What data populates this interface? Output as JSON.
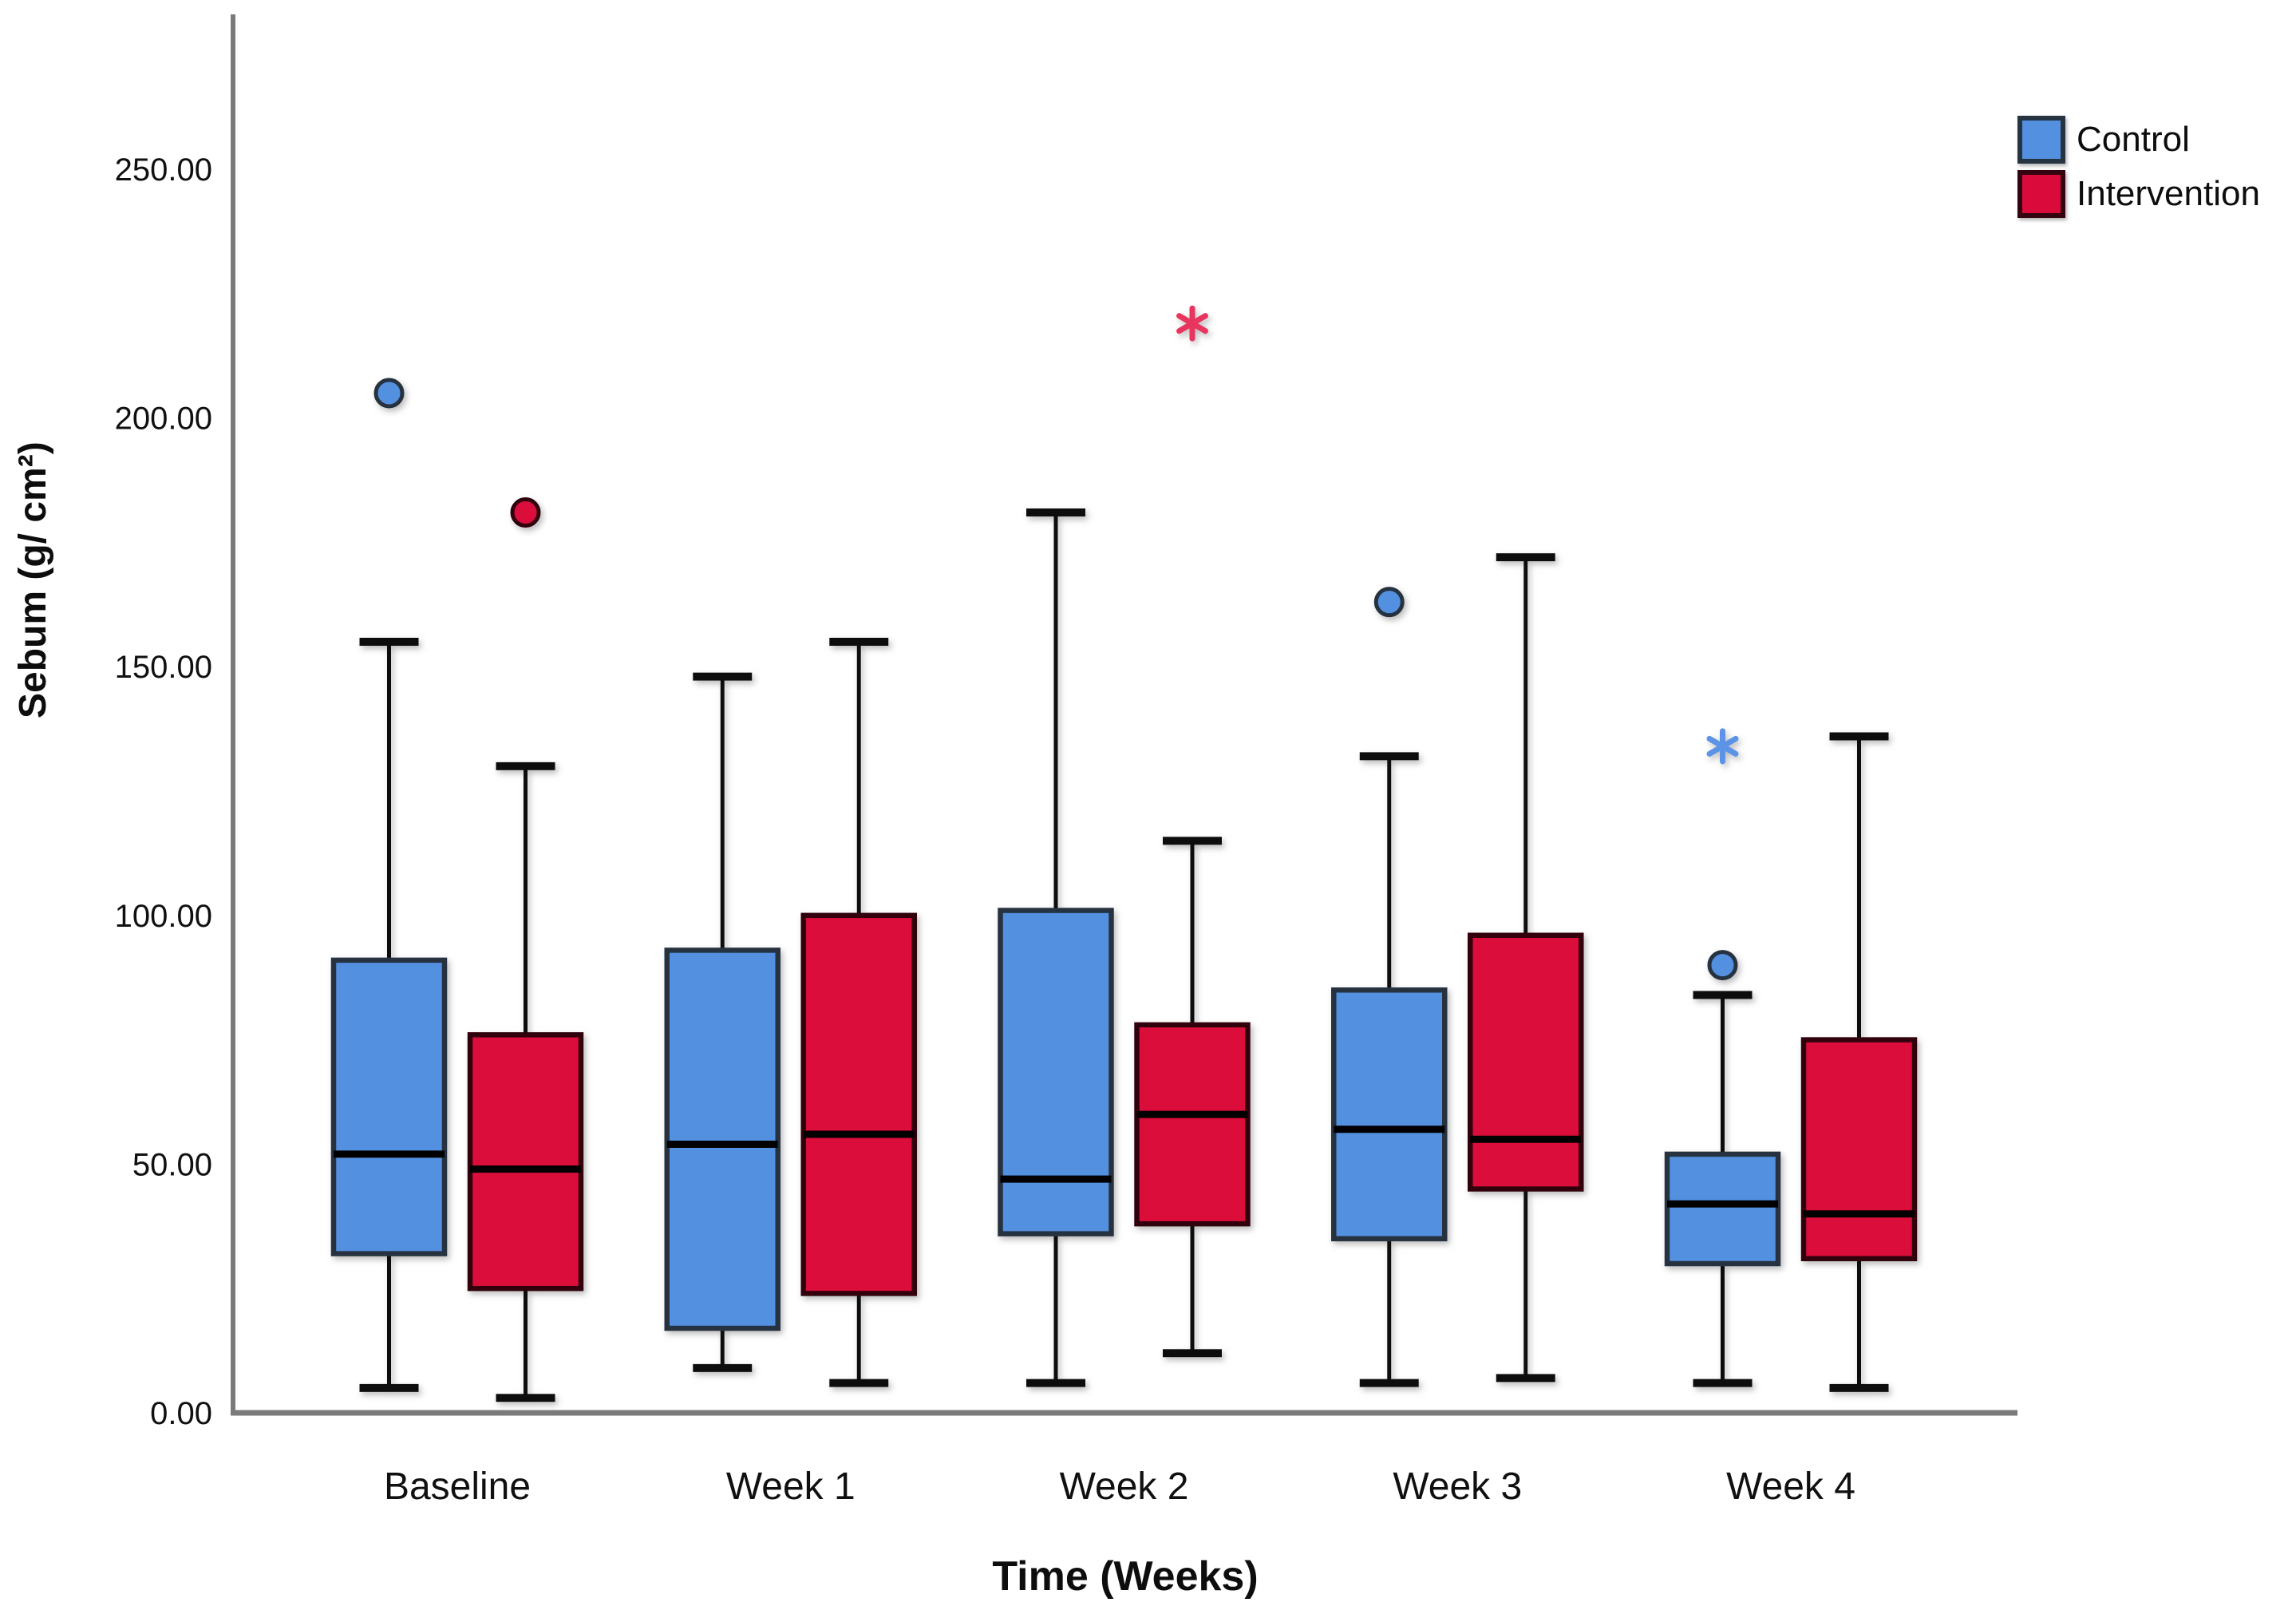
{
  "chart_data": {
    "type": "boxplot",
    "title": "",
    "xlabel": "Time (Weeks)",
    "ylabel": "Sebum (g/ cm²)",
    "categories": [
      "Baseline",
      "Week 1",
      "Week 2",
      "Week 3",
      "Week 4"
    ],
    "y_ticks": [
      {
        "value": 0,
        "label": "0.00"
      },
      {
        "value": 50,
        "label": "50.00"
      },
      {
        "value": 100,
        "label": "100.00"
      },
      {
        "value": 150,
        "label": "150.00"
      },
      {
        "value": 200,
        "label": "200.00"
      },
      {
        "value": 250,
        "label": "250.00"
      }
    ],
    "ylim": [
      0,
      278
    ],
    "grid": false,
    "legend_position": "top-right",
    "axis_color": "#7a7a7a",
    "whisker_color": "#111111",
    "median_color": "#050505",
    "series": [
      {
        "name": "Control",
        "fill": "#5390E0",
        "border": "#263340",
        "outlier_star_color": "#5b93e6",
        "boxes": [
          {
            "category": "Baseline",
            "whisker_low": 5,
            "q1": 32,
            "median": 52,
            "q3": 91,
            "whisker_high": 155,
            "outliers": [
              {
                "type": "circle",
                "value": 205
              }
            ]
          },
          {
            "category": "Week 1",
            "whisker_low": 9,
            "q1": 17,
            "median": 54,
            "q3": 93,
            "whisker_high": 148,
            "outliers": []
          },
          {
            "category": "Week 2",
            "whisker_low": 6,
            "q1": 36,
            "median": 47,
            "q3": 101,
            "whisker_high": 181,
            "outliers": []
          },
          {
            "category": "Week 3",
            "whisker_low": 6,
            "q1": 35,
            "median": 57,
            "q3": 85,
            "whisker_high": 132,
            "outliers": [
              {
                "type": "circle",
                "value": 163
              }
            ]
          },
          {
            "category": "Week 4",
            "whisker_low": 6,
            "q1": 30,
            "median": 42,
            "q3": 52,
            "whisker_high": 84,
            "outliers": [
              {
                "type": "circle",
                "value": 90
              },
              {
                "type": "star",
                "value": 134
              }
            ]
          }
        ]
      },
      {
        "name": "Intervention",
        "fill": "#DA0B3B",
        "border": "#330410",
        "outlier_star_color": "#e8365e",
        "boxes": [
          {
            "category": "Baseline",
            "whisker_low": 3,
            "q1": 25,
            "median": 49,
            "q3": 76,
            "whisker_high": 130,
            "outliers": [
              {
                "type": "circle",
                "value": 181
              }
            ]
          },
          {
            "category": "Week 1",
            "whisker_low": 6,
            "q1": 24,
            "median": 56,
            "q3": 100,
            "whisker_high": 155,
            "outliers": []
          },
          {
            "category": "Week 2",
            "whisker_low": 12,
            "q1": 38,
            "median": 60,
            "q3": 78,
            "whisker_high": 115,
            "outliers": [
              {
                "type": "star",
                "value": 219
              }
            ]
          },
          {
            "category": "Week 3",
            "whisker_low": 7,
            "q1": 45,
            "median": 55,
            "q3": 96,
            "whisker_high": 172,
            "outliers": []
          },
          {
            "category": "Week 4",
            "whisker_low": 5,
            "q1": 31,
            "median": 40,
            "q3": 75,
            "whisker_high": 136,
            "outliers": []
          }
        ]
      }
    ]
  }
}
